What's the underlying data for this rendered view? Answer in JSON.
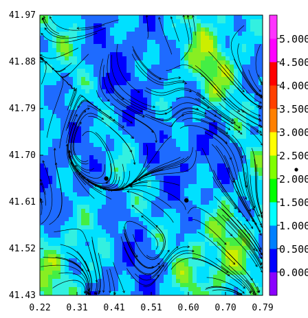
{
  "chart_data": {
    "type": "heatmap",
    "title": "",
    "xlabel": "",
    "ylabel": "",
    "xlim": [
      0.22,
      0.79
    ],
    "ylim": [
      41.43,
      41.97
    ],
    "x_ticks": [
      "0.22",
      "0.31",
      "0.41",
      "0.51",
      "0.60",
      "0.70",
      "0.79"
    ],
    "y_ticks": [
      "41.97",
      "41.88",
      "41.79",
      "41.70",
      "41.61",
      "41.52",
      "41.43"
    ],
    "overlay": "streamlines",
    "colorbar": {
      "labels": [
        "0.000",
        "0.500",
        "1.000",
        "1.500",
        "2.000",
        "2.500",
        "3.000",
        "3.500",
        "4.000",
        "4.500",
        "5.000"
      ],
      "colors": [
        "#8b00ff",
        "#0000ff",
        "#0080ff",
        "#00ffff",
        "#00ff00",
        "#80ff00",
        "#ffff00",
        "#ff8000",
        "#ff4000",
        "#ff0000",
        "#ff00ff",
        "#ff33ff"
      ]
    },
    "field_colors": {
      "dark_blue": "#0000ff",
      "mid_blue": "#1e6bff",
      "cyan": "#00e0ff",
      "light_cyan": "#33f0e0",
      "green": "#44ee44",
      "lime": "#88ee22",
      "yellow_green": "#ccee00"
    },
    "markers": [
      {
        "x": 0.39,
        "y": 41.655
      },
      {
        "x": 0.595,
        "y": 41.613
      }
    ]
  }
}
